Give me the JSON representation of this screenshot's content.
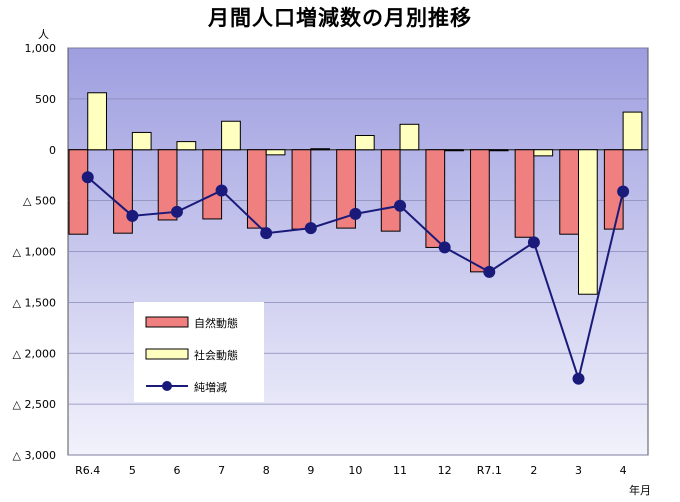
{
  "title": "月間人口増減数の月別推移",
  "chart_data": {
    "type": "bar",
    "ylabel": "人",
    "xlabel": "年月",
    "ylim": [
      -3000,
      1000
    ],
    "yticks": [
      1000,
      500,
      0,
      -500,
      -1000,
      -1500,
      -2000,
      -2500,
      -3000
    ],
    "ytick_labels": [
      "1,000",
      "500",
      "0",
      "△ 500",
      "△ 1,000",
      "△ 1,500",
      "△ 2,000",
      "△ 2,500",
      "△ 3,000"
    ],
    "categories": [
      "R6.4",
      "5",
      "6",
      "7",
      "8",
      "9",
      "10",
      "11",
      "12",
      "R7.1",
      "2",
      "3",
      "4"
    ],
    "series": [
      {
        "name": "自然動態",
        "type": "bar",
        "color": "#f08080",
        "values": [
          -830,
          -820,
          -690,
          -680,
          -770,
          -780,
          -770,
          -800,
          -960,
          -1200,
          -860,
          -830,
          -780
        ]
      },
      {
        "name": "社会動態",
        "type": "bar",
        "color": "#ffffc0",
        "values": [
          560,
          170,
          80,
          280,
          -50,
          10,
          140,
          250,
          0,
          0,
          -60,
          -1420,
          370
        ]
      },
      {
        "name": "純増減",
        "type": "line",
        "color": "#1a1a7a",
        "values": [
          -270,
          -650,
          -610,
          -400,
          -820,
          -770,
          -630,
          -550,
          -960,
          -1200,
          -910,
          -2250,
          -410
        ]
      }
    ],
    "grid": true,
    "legend": "lower-left"
  }
}
